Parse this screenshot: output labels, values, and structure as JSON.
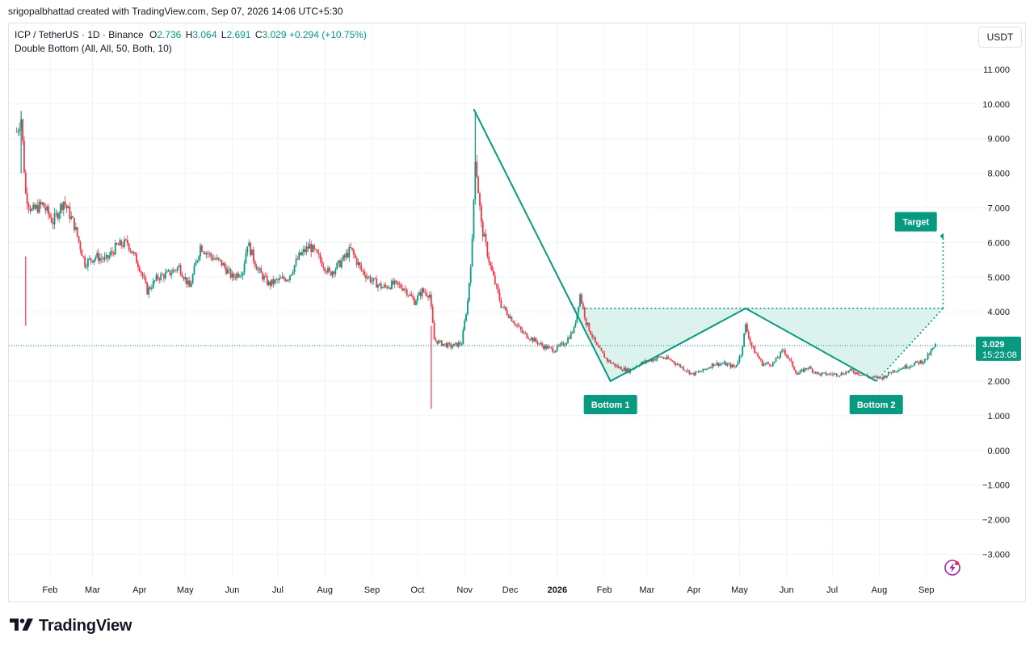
{
  "header": {
    "attribution": "srigopalbhattad created with TradingView.com, Sep 07, 2026 14:06 UTC+5:30"
  },
  "legend": {
    "symbol": "ICP / TetherUS · 1D · Binance",
    "o_label": "O",
    "o_value": "2.736",
    "h_label": "H",
    "h_value": "3.064",
    "l_label": "L",
    "l_value": "2.691",
    "c_label": "C",
    "c_value": "3.029",
    "change": "+0.294 (+10.75%)",
    "indicator": "Double Bottom (All, All, 50, Both, 10)"
  },
  "currency": "USDT",
  "brand": {
    "name": "TradingView",
    "logo_icon": "tradingview-logo-icon"
  },
  "colors": {
    "up": "#089981",
    "down": "#f23645",
    "pattern": "#089981",
    "fill": "#d6f1ea",
    "grid": "#f0f3fa"
  },
  "chart_data": {
    "type": "candlestick",
    "timeframe": "1D",
    "ylim": [
      -3.5,
      12
    ],
    "y_ticks": [
      "11.000",
      "10.000",
      "9.000",
      "8.000",
      "7.000",
      "6.000",
      "5.000",
      "4.000",
      "3.000",
      "2.000",
      "1.000",
      "0.000",
      "−1.000",
      "−2.000",
      "−3.000"
    ],
    "x_ticks": [
      {
        "label": "Feb",
        "date": "2025-02-01"
      },
      {
        "label": "Mar",
        "date": "2025-03-01"
      },
      {
        "label": "Apr",
        "date": "2025-04-01"
      },
      {
        "label": "May",
        "date": "2025-05-01"
      },
      {
        "label": "Jun",
        "date": "2025-06-01"
      },
      {
        "label": "Jul",
        "date": "2025-07-01"
      },
      {
        "label": "Aug",
        "date": "2025-08-01"
      },
      {
        "label": "Sep",
        "date": "2025-09-01"
      },
      {
        "label": "Oct",
        "date": "2025-10-01"
      },
      {
        "label": "Nov",
        "date": "2025-11-01"
      },
      {
        "label": "Dec",
        "date": "2025-12-01"
      },
      {
        "label": "2026",
        "date": "2026-01-01"
      },
      {
        "label": "Feb",
        "date": "2026-02-01"
      },
      {
        "label": "Mar",
        "date": "2026-03-01"
      },
      {
        "label": "Apr",
        "date": "2026-04-01"
      },
      {
        "label": "May",
        "date": "2026-05-01"
      },
      {
        "label": "Jun",
        "date": "2026-06-01"
      },
      {
        "label": "Jul",
        "date": "2026-07-01"
      },
      {
        "label": "Aug",
        "date": "2026-08-01"
      },
      {
        "label": "Sep",
        "date": "2026-09-01"
      }
    ],
    "price_path": [
      [
        "2025-01-10",
        9.2
      ],
      [
        "2025-01-13",
        9.6
      ],
      [
        "2025-01-16",
        7.4
      ],
      [
        "2025-01-20",
        6.9
      ],
      [
        "2025-01-27",
        7.1
      ],
      [
        "2025-02-03",
        6.6
      ],
      [
        "2025-02-10",
        7.2
      ],
      [
        "2025-02-17",
        6.5
      ],
      [
        "2025-02-24",
        5.4
      ],
      [
        "2025-03-03",
        5.6
      ],
      [
        "2025-03-10",
        5.5
      ],
      [
        "2025-03-17",
        5.9
      ],
      [
        "2025-03-24",
        6.0
      ],
      [
        "2025-04-01",
        5.3
      ],
      [
        "2025-04-06",
        4.6
      ],
      [
        "2025-04-13",
        5.0
      ],
      [
        "2025-04-20",
        5.1
      ],
      [
        "2025-04-27",
        5.3
      ],
      [
        "2025-05-04",
        4.7
      ],
      [
        "2025-05-11",
        5.9
      ],
      [
        "2025-05-18",
        5.6
      ],
      [
        "2025-05-25",
        5.4
      ],
      [
        "2025-06-01",
        5.0
      ],
      [
        "2025-06-08",
        5.2
      ],
      [
        "2025-06-11",
        6.0
      ],
      [
        "2025-06-18",
        5.2
      ],
      [
        "2025-06-25",
        4.8
      ],
      [
        "2025-07-01",
        4.9
      ],
      [
        "2025-07-08",
        5.0
      ],
      [
        "2025-07-15",
        5.6
      ],
      [
        "2025-07-22",
        5.9
      ],
      [
        "2025-07-29",
        5.5
      ],
      [
        "2025-08-04",
        5.1
      ],
      [
        "2025-08-11",
        5.4
      ],
      [
        "2025-08-18",
        5.8
      ],
      [
        "2025-08-25",
        5.2
      ],
      [
        "2025-09-01",
        4.9
      ],
      [
        "2025-09-08",
        4.7
      ],
      [
        "2025-09-15",
        4.8
      ],
      [
        "2025-09-22",
        4.7
      ],
      [
        "2025-09-29",
        4.3
      ],
      [
        "2025-10-04",
        4.6
      ],
      [
        "2025-10-09",
        4.5
      ],
      [
        "2025-10-12",
        3.2
      ],
      [
        "2025-10-16",
        3.1
      ],
      [
        "2025-10-23",
        3.0
      ],
      [
        "2025-10-30",
        3.1
      ],
      [
        "2025-11-03",
        4.3
      ],
      [
        "2025-11-06",
        6.0
      ],
      [
        "2025-11-08",
        8.5
      ],
      [
        "2025-11-12",
        6.5
      ],
      [
        "2025-11-18",
        5.3
      ],
      [
        "2025-11-25",
        4.2
      ],
      [
        "2025-12-02",
        3.8
      ],
      [
        "2025-12-09",
        3.4
      ],
      [
        "2025-12-16",
        3.2
      ],
      [
        "2025-12-23",
        3.0
      ],
      [
        "2025-12-30",
        2.9
      ],
      [
        "2026-01-06",
        3.1
      ],
      [
        "2026-01-12",
        3.5
      ],
      [
        "2026-01-16",
        4.5
      ],
      [
        "2026-01-20",
        3.7
      ],
      [
        "2026-01-27",
        3.0
      ],
      [
        "2026-02-03",
        2.6
      ],
      [
        "2026-02-10",
        2.4
      ],
      [
        "2026-02-17",
        2.3
      ],
      [
        "2026-02-24",
        2.5
      ],
      [
        "2026-03-03",
        2.6
      ],
      [
        "2026-03-10",
        2.7
      ],
      [
        "2026-03-17",
        2.6
      ],
      [
        "2026-03-24",
        2.4
      ],
      [
        "2026-03-31",
        2.2
      ],
      [
        "2026-04-07",
        2.3
      ],
      [
        "2026-04-14",
        2.5
      ],
      [
        "2026-04-21",
        2.5
      ],
      [
        "2026-04-28",
        2.4
      ],
      [
        "2026-05-02",
        2.8
      ],
      [
        "2026-05-05",
        3.6
      ],
      [
        "2026-05-09",
        3.0
      ],
      [
        "2026-05-16",
        2.5
      ],
      [
        "2026-05-23",
        2.5
      ],
      [
        "2026-05-30",
        2.9
      ],
      [
        "2026-06-03",
        2.6
      ],
      [
        "2026-06-08",
        2.2
      ],
      [
        "2026-06-15",
        2.4
      ],
      [
        "2026-06-22",
        2.2
      ],
      [
        "2026-06-29",
        2.2
      ],
      [
        "2026-07-06",
        2.2
      ],
      [
        "2026-07-13",
        2.3
      ],
      [
        "2026-07-20",
        2.2
      ],
      [
        "2026-07-27",
        2.1
      ],
      [
        "2026-08-03",
        2.1
      ],
      [
        "2026-08-10",
        2.3
      ],
      [
        "2026-08-17",
        2.4
      ],
      [
        "2026-08-24",
        2.5
      ],
      [
        "2026-08-31",
        2.6
      ],
      [
        "2026-09-07",
        3.029
      ]
    ],
    "wicks": [
      {
        "date": "2025-10-10",
        "low": 1.2
      },
      {
        "date": "2025-11-08",
        "high": 9.8
      },
      {
        "date": "2025-01-13",
        "high": 9.8
      },
      {
        "date": "2025-01-16",
        "low": 5.6
      }
    ],
    "pattern": {
      "name": "Double Bottom",
      "line": [
        [
          "2025-11-07",
          9.85
        ],
        [
          "2026-02-05",
          2.0
        ],
        [
          "2026-05-05",
          4.1
        ],
        [
          "2026-07-30",
          2.0
        ]
      ],
      "neckline": 4.1,
      "breakout_line": [
        [
          "2026-07-30",
          2.0
        ],
        [
          "2026-09-12",
          4.1
        ]
      ],
      "target_line": [
        [
          "2026-09-12",
          4.1
        ],
        [
          "2026-09-12",
          6.25
        ]
      ],
      "labels": [
        {
          "text": "Bottom 1",
          "date": "2026-02-05",
          "price": 2.0
        },
        {
          "text": "Bottom 2",
          "date": "2026-07-30",
          "price": 2.0
        },
        {
          "text": "Target",
          "date": "2026-09-01",
          "price": 6.25
        }
      ]
    },
    "last_price": {
      "value": "3.029",
      "countdown": "15:23:08",
      "price": 3.029
    }
  }
}
